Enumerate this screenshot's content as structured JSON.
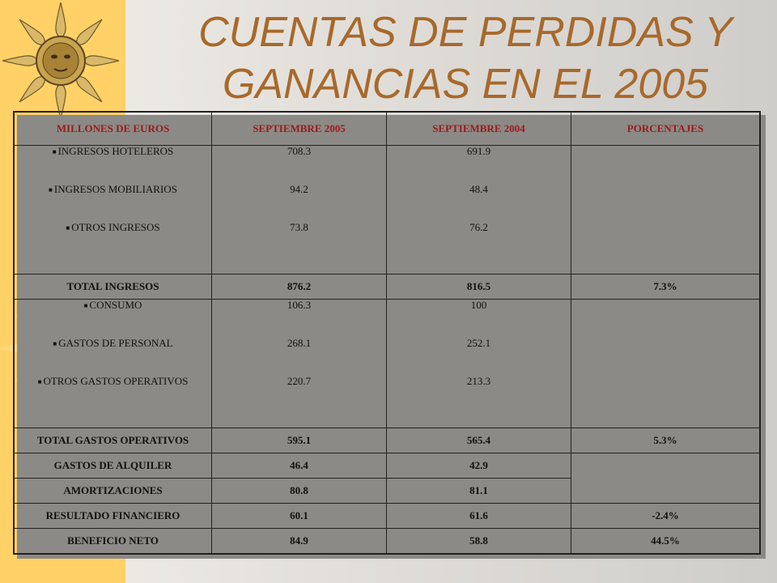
{
  "title": "CUENTAS DE PERDIDAS Y GANANCIAS EN EL 2005",
  "headers": [
    "MILLONES DE EUROS",
    "SEPTIEMBRE 2005",
    "SEPTIEMBRE 2004",
    "PORCENTAJES"
  ],
  "ingresos": {
    "labels": [
      "INGRESOS HOTELEROS",
      "INGRESOS MOBILIARIOS",
      "OTROS INGRESOS"
    ],
    "sep2005": [
      "708.3",
      "94.2",
      "73.8"
    ],
    "sep2004": [
      "691.9",
      "48.4",
      "76.2"
    ]
  },
  "total_ingresos": {
    "label": "TOTAL INGRESOS",
    "sep2005": "876.2",
    "sep2004": "816.5",
    "pct": "7.3%"
  },
  "gastos": {
    "labels": [
      "CONSUMO",
      "GASTOS DE PERSONAL",
      "OTROS GASTOS OPERATIVOS"
    ],
    "sep2005": [
      "106.3",
      "268.1",
      "220.7"
    ],
    "sep2004": [
      "100",
      "252.1",
      "213.3"
    ]
  },
  "total_gastos": {
    "label": "TOTAL GASTOS OPERATIVOS",
    "sep2005": "595.1",
    "sep2004": "565.4",
    "pct": "5.3%"
  },
  "alquiler": {
    "label": "GASTOS DE ALQUILER",
    "sep2005": "46.4",
    "sep2004": "42.9"
  },
  "amortizaciones": {
    "label": "AMORTIZACIONES",
    "sep2005": "80.8",
    "sep2004": "81.1"
  },
  "financiero": {
    "label": "RESULTADO FINANCIERO",
    "sep2005": "60.1",
    "sep2004": "61.6",
    "pct": "-2.4%"
  },
  "beneficio": {
    "label": "BENEFICIO NETO",
    "sep2005": "84.9",
    "sep2004": "58.8",
    "pct": "44.5%"
  },
  "colors": {
    "band": "#ffd166",
    "title": "#a8692b",
    "header_text": "#9b1a1a"
  }
}
